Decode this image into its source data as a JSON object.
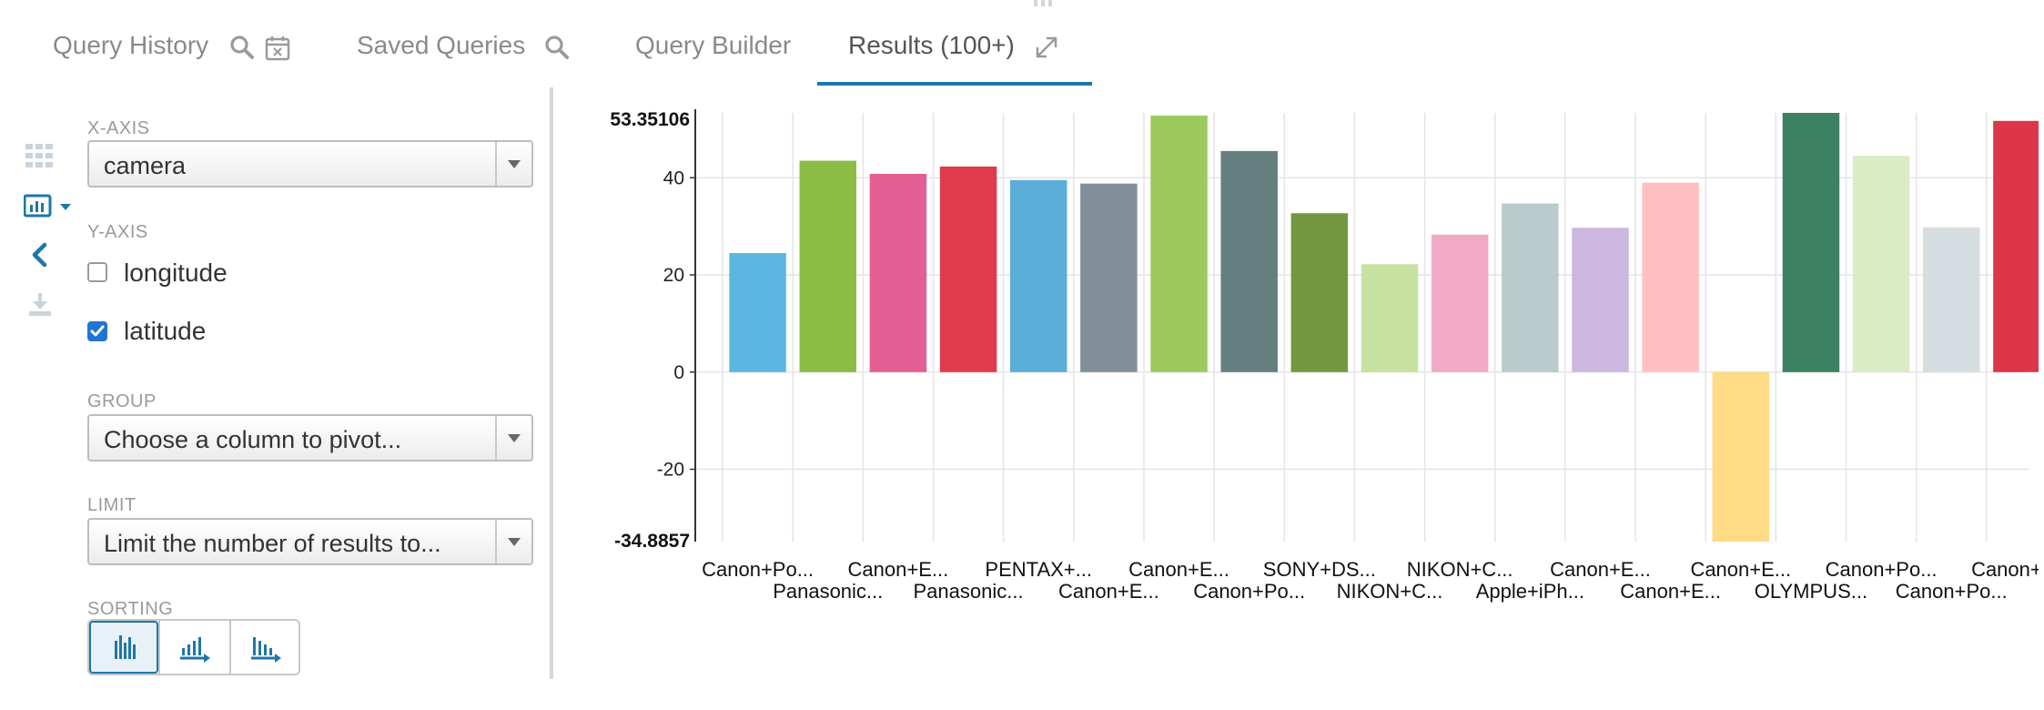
{
  "tabs": {
    "query_history": "Query History",
    "saved_queries": "Saved Queries",
    "query_builder": "Query Builder",
    "results": "Results (100+)"
  },
  "icons": {
    "search": "search-icon",
    "calendar": "calendar-clear-icon",
    "expand": "expand-icon",
    "grid": "grid-icon",
    "chart": "bar-chart-icon",
    "collapse": "chevron-left-icon",
    "download": "download-icon"
  },
  "settings": {
    "x_axis": {
      "label": "X-AXIS",
      "value": "camera"
    },
    "y_axis": {
      "label": "Y-AXIS",
      "options": [
        {
          "label": "longitude",
          "checked": false
        },
        {
          "label": "latitude",
          "checked": true
        }
      ]
    },
    "group": {
      "label": "GROUP",
      "placeholder": "Choose a column to pivot..."
    },
    "limit": {
      "label": "LIMIT",
      "placeholder": "Limit the number of results to..."
    },
    "sorting": {
      "label": "SORTING",
      "options": [
        "none",
        "ascending",
        "descending"
      ],
      "selected": "none"
    }
  },
  "colors": {
    "accent": "#1f76a8",
    "checkbox": "#1f76d2"
  },
  "chart_data": {
    "type": "bar",
    "ylim": [
      -34.8857,
      53.35106
    ],
    "y_ticks": [
      40,
      20,
      0,
      -20
    ],
    "y_max_label": "53.35106",
    "y_min_label": "-34.8857",
    "grid": true,
    "categories": [
      "Canon+Po...",
      "Panasonic...",
      "Canon+E...",
      "Panasonic...",
      "PENTAX+...",
      "Canon+E...",
      "Canon+E...",
      "Canon+Po...",
      "SONY+DS...",
      "NIKON+C...",
      "NIKON+C...",
      "Apple+iPh...",
      "Canon+E...",
      "Canon+E...",
      "Canon+E...",
      "OLYMPUS...",
      "Canon+Po...",
      "Canon+Po...",
      "Canon+E..."
    ],
    "values": [
      24.5,
      43.5,
      40.8,
      42.3,
      39.5,
      38.8,
      52.8,
      45.5,
      32.7,
      22.2,
      28.3,
      34.7,
      29.7,
      39.0,
      -34.8857,
      53.35106,
      44.5,
      29.8,
      51.7
    ],
    "colors": [
      "#5bb7e1",
      "#8bbd45",
      "#e35f92",
      "#df3b4c",
      "#5aaed8",
      "#808f98",
      "#9dca5f",
      "#657f80",
      "#73973f",
      "#c7e2a1",
      "#f0aac6",
      "#b9cbcd",
      "#cbb7e0",
      "#ffc0c2",
      "#ffdb85",
      "#3c8161",
      "#d9ecc4",
      "#d6dde0",
      "#dc3648"
    ]
  }
}
